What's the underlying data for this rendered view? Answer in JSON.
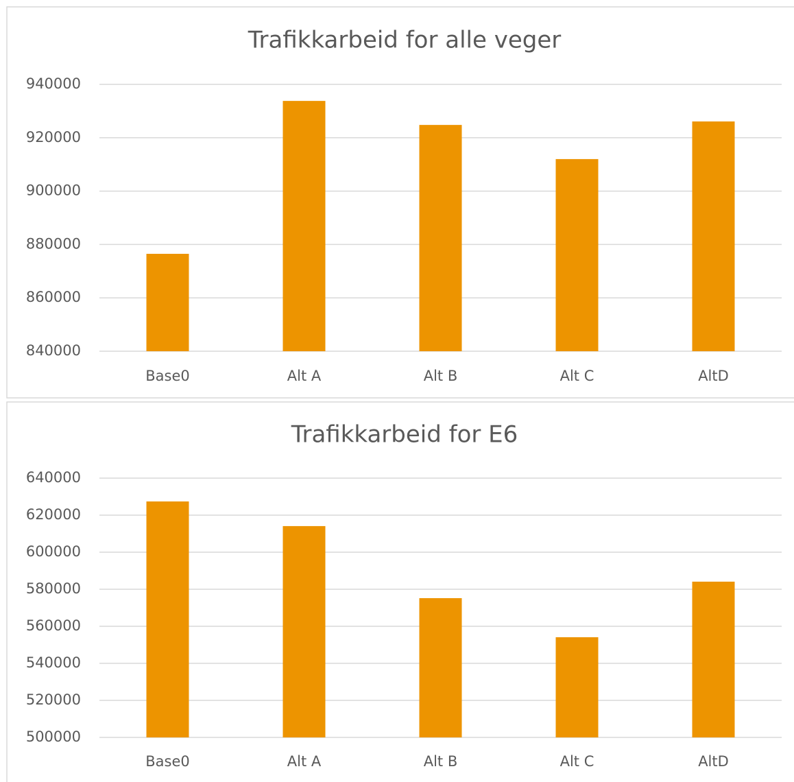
{
  "chart_data": [
    {
      "type": "bar",
      "title": "Trafikkarbeid for alle veger",
      "categories": [
        "Base0",
        "Alt A",
        "Alt B",
        "Alt C",
        "AltD"
      ],
      "values": [
        876500,
        933800,
        924800,
        912000,
        926100
      ],
      "color": "#ed9400",
      "ylim": [
        840000,
        940000
      ],
      "yticks": [
        840000,
        860000,
        880000,
        900000,
        920000,
        940000
      ],
      "grid": true
    },
    {
      "type": "bar",
      "title": "Trafikkarbeid for E6",
      "categories": [
        "Base0",
        "Alt A",
        "Alt B",
        "Alt C",
        "AltD"
      ],
      "values": [
        627400,
        614100,
        575200,
        554100,
        584100
      ],
      "color": "#ed9400",
      "ylim": [
        500000,
        640000
      ],
      "yticks": [
        500000,
        520000,
        540000,
        560000,
        580000,
        600000,
        620000,
        640000
      ],
      "grid": true
    }
  ]
}
